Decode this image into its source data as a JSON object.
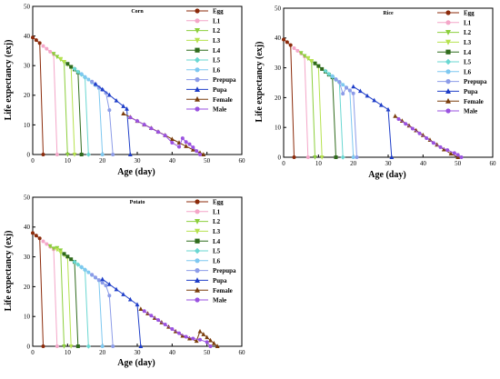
{
  "colors": {
    "Egg": "#8b2a0a",
    "L1": "#f4a6c8",
    "L2": "#8ccf3c",
    "L3": "#b6e24f",
    "L4": "#2f6b1c",
    "L5": "#6ad7d2",
    "L6": "#7ec8f0",
    "Prepupa": "#8c9ce8",
    "Pupa": "#1f3ec8",
    "Female": "#7a3d0c",
    "Male": "#9a52e0"
  },
  "chart_data": [
    {
      "type": "line",
      "title": "Corn",
      "xlabel": "Age (day)",
      "ylabel": "Life expectancy (exj)",
      "xlim": [
        0,
        60
      ],
      "ylim": [
        0,
        50
      ],
      "xticks": [
        0,
        10,
        20,
        30,
        40,
        50,
        60
      ],
      "yticks": [
        0,
        10,
        20,
        30,
        40,
        50
      ],
      "legend": "top-right",
      "series": [
        {
          "name": "Egg",
          "marker": "circle",
          "x": [
            0,
            1,
            2,
            3
          ],
          "y": [
            39.5,
            38.6,
            37.6,
            0
          ]
        },
        {
          "name": "L1",
          "marker": "circle",
          "x": [
            3,
            4,
            5,
            6,
            7
          ],
          "y": [
            36.6,
            35.7,
            34.7,
            33.8,
            0
          ]
        },
        {
          "name": "L2",
          "marker": "tri-down",
          "x": [
            6,
            7,
            8,
            9,
            10
          ],
          "y": [
            34.0,
            33.0,
            32.1,
            31.1,
            0
          ]
        },
        {
          "name": "L3",
          "marker": "tri-down",
          "x": [
            8,
            9,
            10,
            11,
            12
          ],
          "y": [
            32.3,
            31.3,
            30.4,
            29.4,
            0
          ]
        },
        {
          "name": "L4",
          "marker": "square",
          "x": [
            10,
            11,
            12,
            13,
            14
          ],
          "y": [
            30.6,
            29.6,
            28.7,
            27.7,
            0
          ]
        },
        {
          "name": "L5",
          "marker": "diamond",
          "x": [
            12,
            13,
            14,
            15,
            16
          ],
          "y": [
            28.9,
            27.9,
            27.0,
            26.0,
            0
          ]
        },
        {
          "name": "L6",
          "marker": "circle",
          "x": [
            14,
            15,
            16,
            17,
            18,
            19,
            20
          ],
          "y": [
            27.2,
            26.2,
            25.3,
            24.3,
            23.4,
            22.4,
            0
          ]
        },
        {
          "name": "Prepupa",
          "marker": "circle",
          "x": [
            17,
            18,
            19,
            20,
            21,
            22,
            23
          ],
          "y": [
            24.6,
            23.7,
            22.7,
            21.8,
            20.8,
            15.0,
            0
          ]
        },
        {
          "name": "Pupa",
          "marker": "tri-up",
          "x": [
            18,
            20,
            22,
            24,
            26,
            27,
            28
          ],
          "y": [
            23.8,
            22.0,
            20.1,
            18.2,
            16.3,
            15.4,
            0
          ]
        },
        {
          "name": "Female",
          "marker": "tri-up",
          "x": [
            26,
            28,
            30,
            32,
            34,
            36,
            38,
            40,
            42,
            44,
            46,
            48,
            49
          ],
          "y": [
            13.8,
            12.6,
            11.3,
            10.1,
            8.9,
            7.7,
            6.5,
            5.2,
            4.0,
            2.8,
            1.6,
            0.6,
            0
          ]
        },
        {
          "name": "Male",
          "marker": "circle",
          "x": [
            28,
            30,
            32,
            34,
            36,
            38,
            40,
            42,
            43,
            44,
            45,
            46,
            47,
            48
          ],
          "y": [
            12.5,
            11.3,
            10.1,
            8.8,
            7.6,
            6.4,
            4.0,
            2.6,
            5.5,
            4.2,
            3.5,
            2.4,
            1.2,
            0
          ]
        }
      ]
    },
    {
      "type": "line",
      "title": "Rice",
      "xlabel": "Age (day)",
      "ylabel": "Life expectancy (exj)",
      "xlim": [
        0,
        60
      ],
      "ylim": [
        0,
        50
      ],
      "xticks": [
        0,
        10,
        20,
        30,
        40,
        50,
        60
      ],
      "yticks": [
        0,
        10,
        20,
        30,
        40,
        50
      ],
      "legend": "top-right",
      "series": [
        {
          "name": "Egg",
          "marker": "circle",
          "x": [
            0,
            1,
            2,
            3
          ],
          "y": [
            39.5,
            38.6,
            37.6,
            0
          ]
        },
        {
          "name": "L1",
          "marker": "circle",
          "x": [
            3,
            4,
            5,
            6,
            7
          ],
          "y": [
            36.6,
            35.7,
            34.8,
            33.8,
            0
          ]
        },
        {
          "name": "L2",
          "marker": "tri-down",
          "x": [
            5,
            6,
            7,
            8,
            9
          ],
          "y": [
            35.0,
            34.0,
            33.1,
            32.1,
            0
          ]
        },
        {
          "name": "L3",
          "marker": "tri-down",
          "x": [
            7,
            8,
            9,
            10,
            11
          ],
          "y": [
            33.3,
            32.3,
            31.4,
            30.4,
            0
          ]
        },
        {
          "name": "L4",
          "marker": "square",
          "x": [
            9,
            10,
            11,
            12,
            13,
            14,
            15
          ],
          "y": [
            31.5,
            30.6,
            29.6,
            28.7,
            27.7,
            26.8,
            0
          ]
        },
        {
          "name": "L5",
          "marker": "diamond",
          "x": [
            12,
            13,
            14,
            15,
            16,
            17
          ],
          "y": [
            28.9,
            27.9,
            27.0,
            26.0,
            25.1,
            0
          ]
        },
        {
          "name": "L6",
          "marker": "circle",
          "x": [
            14,
            15,
            16,
            17,
            18,
            19,
            20
          ],
          "y": [
            27.2,
            26.2,
            25.3,
            24.3,
            23.4,
            22.4,
            0
          ]
        },
        {
          "name": "Prepupa",
          "marker": "circle",
          "x": [
            15,
            16,
            17,
            18,
            19,
            20,
            21
          ],
          "y": [
            26.1,
            25.2,
            21.3,
            23.3,
            22.4,
            21.4,
            0
          ]
        },
        {
          "name": "Pupa",
          "marker": "tri-up",
          "x": [
            20,
            22,
            24,
            26,
            28,
            30,
            31
          ],
          "y": [
            23.7,
            22.2,
            20.6,
            19.1,
            17.5,
            16.0,
            0
          ]
        },
        {
          "name": "Female",
          "marker": "tri-up",
          "x": [
            32,
            34,
            36,
            38,
            40,
            42,
            44,
            46,
            48,
            50
          ],
          "y": [
            13.8,
            12.2,
            10.6,
            9.0,
            7.4,
            5.8,
            4.2,
            2.6,
            1.2,
            0
          ]
        },
        {
          "name": "Male",
          "marker": "circle",
          "x": [
            33,
            35,
            37,
            39,
            41,
            43,
            45,
            47,
            49,
            50,
            51
          ],
          "y": [
            12.8,
            11.2,
            9.6,
            8.0,
            6.4,
            4.8,
            3.4,
            2.4,
            1.4,
            0.8,
            0
          ]
        }
      ]
    },
    {
      "type": "line",
      "title": "Potato",
      "xlabel": "Age (day)",
      "ylabel": "Life expectancy (exj)",
      "xlim": [
        0,
        60
      ],
      "ylim": [
        0,
        50
      ],
      "xticks": [
        0,
        10,
        20,
        30,
        40,
        50,
        60
      ],
      "yticks": [
        0,
        10,
        20,
        30,
        40,
        50
      ],
      "legend": "top-right",
      "series": [
        {
          "name": "Egg",
          "marker": "circle",
          "x": [
            0,
            1,
            2,
            3
          ],
          "y": [
            38.0,
            37.1,
            36.2,
            0
          ]
        },
        {
          "name": "L1",
          "marker": "circle",
          "x": [
            3,
            4,
            5,
            6,
            7
          ],
          "y": [
            35.2,
            34.3,
            33.4,
            32.5,
            0
          ]
        },
        {
          "name": "L2",
          "marker": "tri-down",
          "x": [
            5,
            6,
            7,
            8,
            9
          ],
          "y": [
            33.6,
            32.8,
            33.0,
            32.2,
            0
          ]
        },
        {
          "name": "L3",
          "marker": "tri-down",
          "x": [
            7,
            8,
            9,
            10,
            11
          ],
          "y": [
            32.4,
            31.5,
            30.6,
            29.8,
            0
          ]
        },
        {
          "name": "L4",
          "marker": "square",
          "x": [
            9,
            10,
            11,
            12,
            13
          ],
          "y": [
            31.0,
            30.1,
            29.2,
            28.3,
            0
          ]
        },
        {
          "name": "L5",
          "marker": "diamond",
          "x": [
            12,
            13,
            14,
            15,
            16
          ],
          "y": [
            28.3,
            27.4,
            26.5,
            25.6,
            0
          ]
        },
        {
          "name": "L6",
          "marker": "circle",
          "x": [
            14,
            15,
            16,
            17,
            18,
            19,
            20
          ],
          "y": [
            26.6,
            25.7,
            24.8,
            23.9,
            23.0,
            22.1,
            0
          ]
        },
        {
          "name": "Prepupa",
          "marker": "circle",
          "x": [
            17,
            18,
            19,
            20,
            21,
            22,
            23
          ],
          "y": [
            24.0,
            23.1,
            22.2,
            21.3,
            20.4,
            17.0,
            0
          ]
        },
        {
          "name": "Pupa",
          "marker": "tri-up",
          "x": [
            20,
            22,
            24,
            26,
            28,
            30,
            31
          ],
          "y": [
            22.5,
            20.8,
            19.1,
            17.4,
            15.7,
            14.0,
            0
          ]
        },
        {
          "name": "Female",
          "marker": "tri-up",
          "x": [
            31,
            33,
            35,
            37,
            39,
            41,
            43,
            45,
            47,
            48,
            49,
            50,
            51,
            52,
            53
          ],
          "y": [
            12.5,
            11.0,
            9.5,
            8.0,
            6.5,
            5.0,
            3.5,
            2.6,
            1.8,
            5.0,
            4.0,
            3.0,
            2.0,
            1.0,
            0
          ]
        },
        {
          "name": "Male",
          "marker": "circle",
          "x": [
            32,
            34,
            36,
            38,
            40,
            42,
            44,
            46,
            48,
            50,
            51
          ],
          "y": [
            11.8,
            10.3,
            8.8,
            7.3,
            5.8,
            4.4,
            3.2,
            2.6,
            2.2,
            1.4,
            0
          ]
        }
      ]
    }
  ]
}
